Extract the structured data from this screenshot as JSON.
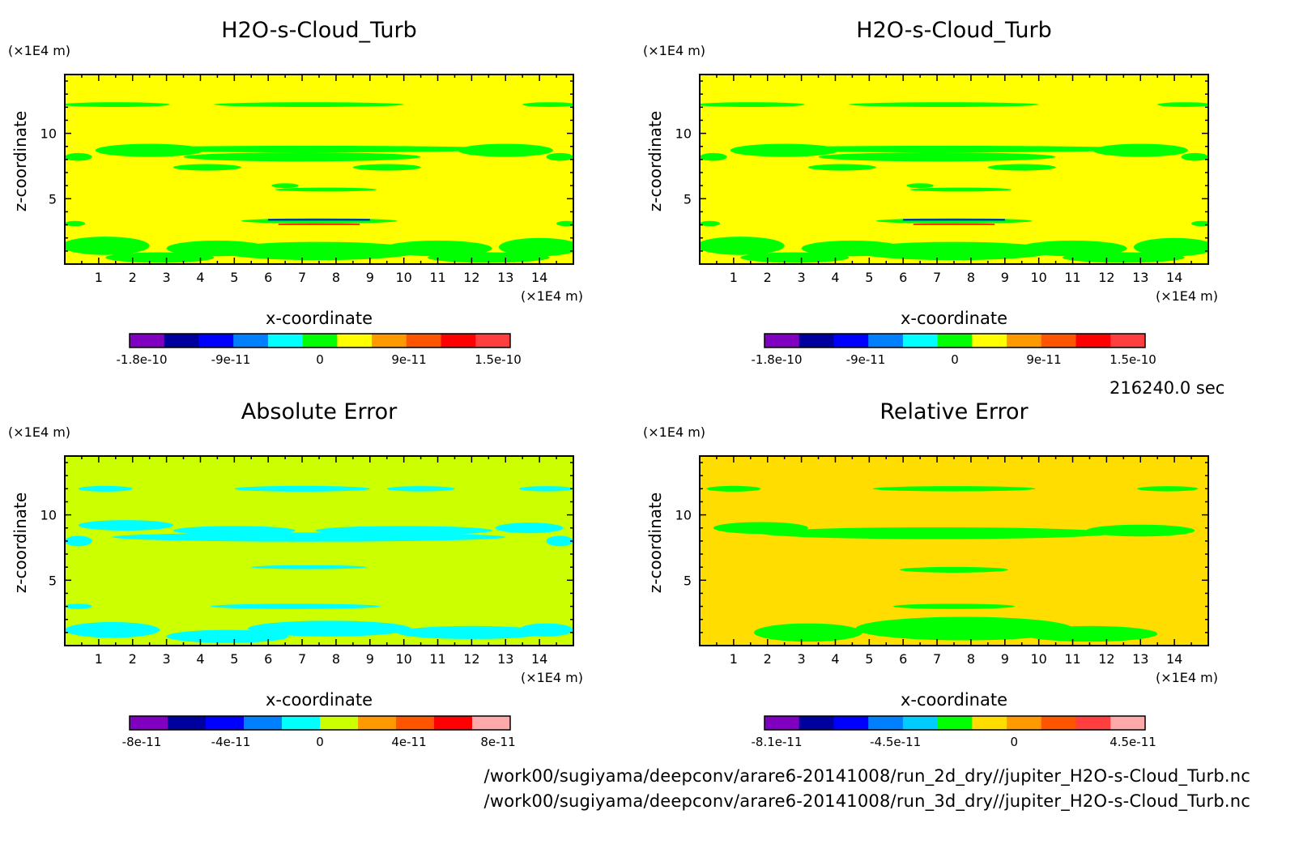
{
  "footer": {
    "timestamp": "216240.0 sec",
    "path_1": "/work00/sugiyama/deepconv/arare6-20141008/run_2d_dry//jupiter_H2O-s-Cloud_Turb.nc",
    "path_2": "/work00/sugiyama/deepconv/arare6-20141008/run_3d_dry//jupiter_H2O-s-Cloud_Turb.nc"
  },
  "chart_data": [
    {
      "type": "heatmap",
      "title": "H2O-s-Cloud_Turb",
      "xlabel": "x-coordinate",
      "ylabel": "z-coordinate",
      "x_unit": "(×1E4 m)",
      "y_unit": "(×1E4 m)",
      "xlim": [
        0,
        15
      ],
      "ylim": [
        0,
        14.5
      ],
      "x_ticks": [
        "1",
        "2",
        "3",
        "4",
        "5",
        "6",
        "7",
        "8",
        "9",
        "10",
        "11",
        "12",
        "13",
        "14"
      ],
      "y_ticks": [
        "5",
        "10"
      ],
      "background": "#ffff00",
      "features_color": "#00ff00",
      "colorbar": {
        "colors": [
          "#7f00bf",
          "#00009f",
          "#0000ff",
          "#007fff",
          "#00ffff",
          "#00ff00",
          "#ffff00",
          "#ff9900",
          "#ff5500",
          "#ff0000",
          "#ff3f3f"
        ],
        "labels": [
          "-1.8e-10",
          "-9e-11",
          "0",
          "9e-11",
          "1.5e-10"
        ]
      }
    },
    {
      "type": "heatmap",
      "title": "H2O-s-Cloud_Turb",
      "xlabel": "x-coordinate",
      "ylabel": "z-coordinate",
      "x_unit": "(×1E4 m)",
      "y_unit": "(×1E4 m)",
      "xlim": [
        0,
        15
      ],
      "ylim": [
        0,
        14.5
      ],
      "x_ticks": [
        "1",
        "2",
        "3",
        "4",
        "5",
        "6",
        "7",
        "8",
        "9",
        "10",
        "11",
        "12",
        "13",
        "14"
      ],
      "y_ticks": [
        "5",
        "10"
      ],
      "background": "#ffff00",
      "features_color": "#00ff00",
      "colorbar": {
        "colors": [
          "#7f00bf",
          "#00009f",
          "#0000ff",
          "#007fff",
          "#00ffff",
          "#00ff00",
          "#ffff00",
          "#ff9900",
          "#ff5500",
          "#ff0000",
          "#ff3f3f"
        ],
        "labels": [
          "-1.8e-10",
          "-9e-11",
          "0",
          "9e-11",
          "1.5e-10"
        ]
      }
    },
    {
      "type": "heatmap",
      "title": "Absolute Error",
      "xlabel": "x-coordinate",
      "ylabel": "z-coordinate",
      "x_unit": "(×1E4 m)",
      "y_unit": "(×1E4 m)",
      "xlim": [
        0,
        15
      ],
      "ylim": [
        0,
        14.5
      ],
      "x_ticks": [
        "1",
        "2",
        "3",
        "4",
        "5",
        "6",
        "7",
        "8",
        "9",
        "10",
        "11",
        "12",
        "13",
        "14"
      ],
      "y_ticks": [
        "5",
        "10"
      ],
      "background": "#ccff00",
      "features_color": "#00ffff",
      "colorbar": {
        "colors": [
          "#7f00bf",
          "#00009f",
          "#0000ff",
          "#007fff",
          "#00ffff",
          "#ccff00",
          "#ff9900",
          "#ff5500",
          "#ff0000",
          "#ffaaaa"
        ],
        "labels": [
          "-8e-11",
          "-4e-11",
          "0",
          "4e-11",
          "8e-11"
        ]
      }
    },
    {
      "type": "heatmap",
      "title": "Relative Error",
      "xlabel": "x-coordinate",
      "ylabel": "z-coordinate",
      "x_unit": "(×1E4 m)",
      "y_unit": "(×1E4 m)",
      "xlim": [
        0,
        15
      ],
      "ylim": [
        0,
        14.5
      ],
      "x_ticks": [
        "1",
        "2",
        "3",
        "4",
        "5",
        "6",
        "7",
        "8",
        "9",
        "10",
        "11",
        "12",
        "13",
        "14"
      ],
      "y_ticks": [
        "5",
        "10"
      ],
      "background": "#ffdd00",
      "features_color": "#00ff00",
      "colorbar": {
        "colors": [
          "#7f00bf",
          "#00009f",
          "#0000ff",
          "#007fff",
          "#00ccff",
          "#00ff00",
          "#ffdd00",
          "#ff9900",
          "#ff5500",
          "#ff3f3f",
          "#ffaaaa"
        ],
        "labels": [
          "-8.1e-11",
          "-4.5e-11",
          "0",
          "4.5e-11"
        ]
      }
    }
  ]
}
